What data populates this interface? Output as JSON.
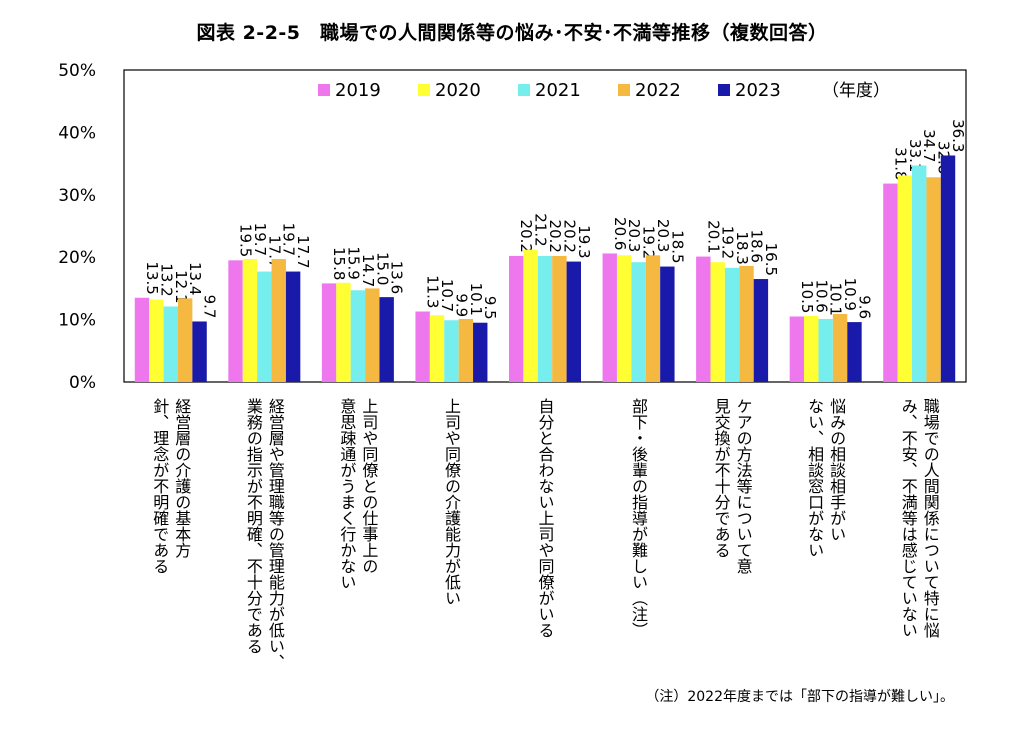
{
  "chart_data": {
    "type": "bar",
    "title": "図表 2-2-5　職場での人間関係等の悩み･不安･不満等推移（複数回答）",
    "ylim": [
      0,
      50
    ],
    "yticks": [
      0,
      10,
      20,
      30,
      40,
      50
    ],
    "ytick_labels": [
      "0%",
      "10%",
      "20%",
      "30%",
      "40%",
      "50%"
    ],
    "legend_position": "top",
    "legend_suffix": "（年度）",
    "categories": [
      [
        "経営層の介護の基本方",
        "針、理念が不明確である"
      ],
      [
        "経営層や管理職等の管理能力が低い、",
        "業務の指示が不明確、不十分である"
      ],
      [
        "上司や同僚との仕事上の",
        "意思疎通がうまく行かない"
      ],
      [
        "上司や同僚の介護能力が低い"
      ],
      [
        "自分と合わない上司や同僚がいる"
      ],
      [
        "部下・後輩の指導が難しい（注）"
      ],
      [
        "ケアの方法等について意",
        "見交換が不十分である"
      ],
      [
        "悩みの相談相手がい",
        "ない、相談窓口がない"
      ],
      [
        "職場での人間関係について特に悩",
        "み、不安、不満等は感じていない"
      ]
    ],
    "series": [
      {
        "name": "2019",
        "color": "#ee77ee",
        "values": [
          13.5,
          19.5,
          15.8,
          11.3,
          20.2,
          20.6,
          20.1,
          10.5,
          31.8
        ]
      },
      {
        "name": "2020",
        "color": "#ffff33",
        "values": [
          13.2,
          19.7,
          15.9,
          10.7,
          21.2,
          20.3,
          19.2,
          10.6,
          33.1
        ]
      },
      {
        "name": "2021",
        "color": "#77eeee",
        "values": [
          12.1,
          17.7,
          14.7,
          9.9,
          20.2,
          19.2,
          18.3,
          10.1,
          34.7
        ]
      },
      {
        "name": "2022",
        "color": "#f5b841",
        "values": [
          13.4,
          19.7,
          15.0,
          10.1,
          20.2,
          20.3,
          18.6,
          10.9,
          32.8
        ]
      },
      {
        "name": "2023",
        "color": "#1a1aaa",
        "values": [
          9.7,
          17.7,
          13.6,
          9.5,
          19.3,
          18.5,
          16.5,
          9.6,
          36.3
        ]
      }
    ]
  },
  "note": "（注）2022年度までは「部下の指導が難しい」。"
}
